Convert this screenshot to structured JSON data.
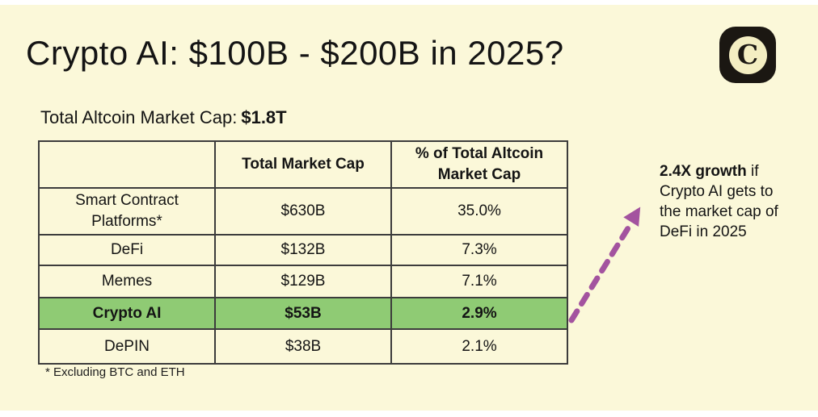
{
  "header": {
    "title": "Crypto AI: $100B - $200B in 2025?",
    "logo_letter": "C"
  },
  "subtitle": {
    "label": "Total Altcoin Market Cap:",
    "value": "$1.8T"
  },
  "table": {
    "columns": [
      "",
      "Total Market Cap",
      "% of Total Altcoin Market Cap"
    ],
    "rows": [
      {
        "category": "Smart Contract Platforms*",
        "market_cap": "$630B",
        "pct": "35.0%",
        "highlight": false
      },
      {
        "category": "DeFi",
        "market_cap": "$132B",
        "pct": "7.3%",
        "highlight": false
      },
      {
        "category": "Memes",
        "market_cap": "$129B",
        "pct": "7.1%",
        "highlight": false
      },
      {
        "category": "Crypto AI",
        "market_cap": "$53B",
        "pct": "2.9%",
        "highlight": true
      },
      {
        "category": "DePIN",
        "market_cap": "$38B",
        "pct": "2.1%",
        "highlight": false
      }
    ],
    "footnote": "* Excluding BTC and ETH"
  },
  "annotation": {
    "bold": "2.4X growth",
    "rest": " if Crypto AI gets to the market cap of DeFi in 2025"
  },
  "colors": {
    "background": "#FBF8D9",
    "highlight_green": "#8FCB74",
    "arrow_purple": "#A3539F",
    "table_border": "#3c3c3c",
    "text": "#141414",
    "logo_black": "#1b1712",
    "logo_cream": "#F4EEC2"
  },
  "chart_data": {
    "type": "table",
    "title": "Crypto AI: $100B - $200B in 2025?",
    "subtitle": "Total Altcoin Market Cap: $1.8T",
    "columns": [
      "",
      "Total Market Cap",
      "% of Total Altcoin Market Cap"
    ],
    "rows": [
      [
        "Smart Contract Platforms*",
        "$630B",
        "35.0%"
      ],
      [
        "DeFi",
        "$132B",
        "7.3%"
      ],
      [
        "Memes",
        "$129B",
        "7.1%"
      ],
      [
        "Crypto AI",
        "$53B",
        "2.9%"
      ],
      [
        "DePIN",
        "$38B",
        "2.1%"
      ]
    ],
    "market_cap_values_billions": [
      630,
      132,
      129,
      53,
      38
    ],
    "pct_of_total_altcoin": [
      35.0,
      7.3,
      7.1,
      2.9,
      2.1
    ],
    "highlighted_row": "Crypto AI",
    "annotation": "2.4X growth if Crypto AI gets to the market cap of DeFi in 2025",
    "footnote": "* Excluding BTC and ETH"
  }
}
